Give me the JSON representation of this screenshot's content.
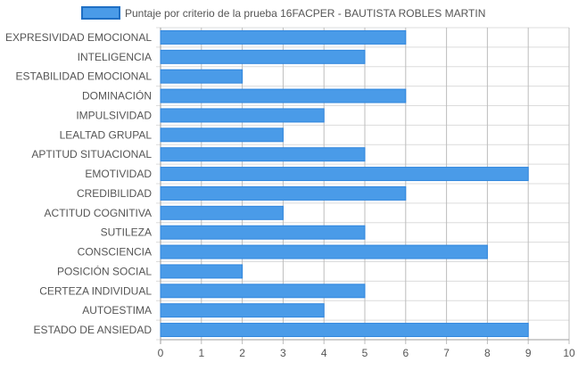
{
  "chart_data": {
    "type": "bar",
    "orientation": "horizontal",
    "categories": [
      "EXPRESIVIDAD EMOCIONAL",
      "INTELIGENCIA",
      "ESTABILIDAD EMOCIONAL",
      "DOMINACIÓN",
      "IMPULSIVIDAD",
      "LEALTAD GRUPAL",
      "APTITUD SITUACIONAL",
      "EMOTIVIDAD",
      "CREDIBILIDAD",
      "ACTITUD COGNITIVA",
      "SUTILEZA",
      "CONSCIENCIA",
      "POSICIÓN SOCIAL",
      "CERTEZA INDIVIDUAL",
      "AUTOESTIMA",
      "ESTADO DE ANSIEDAD"
    ],
    "series": [
      {
        "name": "Puntaje por criterio de la prueba 16FACPER - BAUTISTA ROBLES MARTIN",
        "values": [
          6,
          5,
          2,
          6,
          4,
          3,
          5,
          9,
          6,
          3,
          5,
          8,
          2,
          5,
          4,
          9
        ]
      }
    ],
    "xlim": [
      0,
      10
    ],
    "xticks": [
      0,
      1,
      2,
      3,
      4,
      5,
      6,
      7,
      8,
      9,
      10
    ],
    "grid": true,
    "legend_position": "top",
    "colors": {
      "bar_fill": "#4a9be8",
      "bar_border": "#2f86de",
      "legend_fill": "#4a9be8",
      "legend_border": "#1f6fc4",
      "grid": "#dcdcdc",
      "grid_major": "#bdbdbd",
      "axis": "#9e9e9e",
      "text": "#555555"
    }
  }
}
